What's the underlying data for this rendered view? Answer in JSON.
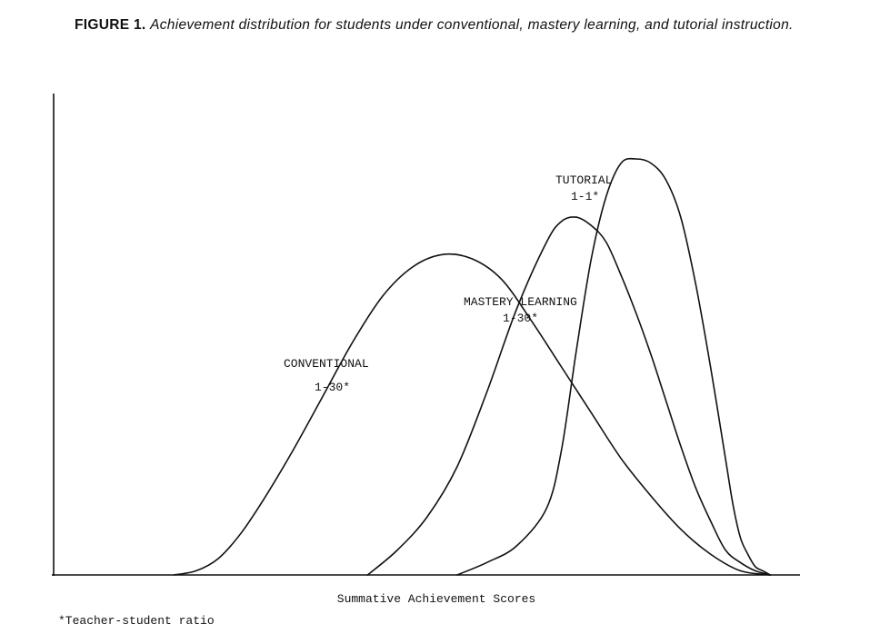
{
  "figure": {
    "label": "FIGURE 1.",
    "caption": "Achievement distribution for students under conventional, mastery learning, and tutorial instruction."
  },
  "footnote": "*Teacher-student ratio",
  "chart_data": {
    "type": "area",
    "title": "",
    "xlabel": "Summative Achievement Scores",
    "ylabel": "",
    "grid": false,
    "legend": "labels placed next to curves",
    "xlim": [
      0,
      100
    ],
    "ylim": [
      0,
      100
    ],
    "series": [
      {
        "name": "CONVENTIONAL",
        "ratio": "1-30*",
        "x": [
          16,
          19,
          22,
          25,
          28,
          32,
          36,
          40,
          44,
          48,
          52,
          56,
          60,
          64,
          68,
          72,
          76,
          80,
          84,
          88,
          92,
          96
        ],
        "y": [
          0,
          1,
          4,
          10,
          18,
          30,
          43,
          56,
          67,
          74,
          77,
          76,
          71,
          61,
          50,
          39,
          28,
          19,
          11,
          5,
          1,
          0
        ]
      },
      {
        "name": "MASTERY LEARNING",
        "ratio": "1-30*",
        "x": [
          42,
          46,
          50,
          54,
          58,
          62,
          66,
          68,
          70,
          72,
          74,
          76,
          78,
          80,
          82,
          84,
          86,
          88,
          90,
          92,
          94,
          96
        ],
        "y": [
          0,
          6,
          14,
          26,
          44,
          64,
          80,
          85,
          86,
          84,
          80,
          72,
          63,
          53,
          42,
          31,
          21,
          13,
          6,
          3,
          1,
          0
        ]
      },
      {
        "name": "TUTORIAL",
        "ratio": "1-1*",
        "x": [
          54,
          58,
          62,
          66,
          68,
          70,
          72,
          74,
          76,
          78,
          80,
          82,
          84,
          86,
          88,
          90,
          91,
          92,
          93,
          94,
          95,
          96
        ],
        "y": [
          0,
          3,
          7,
          16,
          30,
          54,
          76,
          91,
          99,
          100,
          99,
          95,
          86,
          70,
          50,
          28,
          17,
          9,
          5,
          2,
          1,
          0
        ]
      }
    ]
  }
}
